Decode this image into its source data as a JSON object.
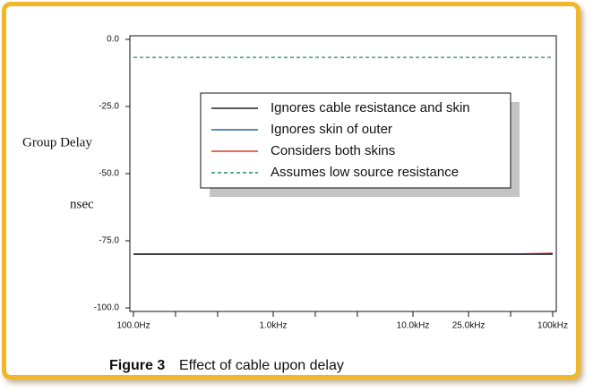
{
  "chart_data": {
    "type": "line",
    "y_label": "Group Delay",
    "y_unit": "nsec",
    "figure_label": "Figure 3",
    "caption": "Effect of cable upon delay",
    "x": [
      100,
      1000,
      10000,
      50000,
      100000
    ],
    "xlim": [
      100,
      100000
    ],
    "xscale": "log",
    "xticks": [
      {
        "value": 100,
        "label": "100.0Hz"
      },
      {
        "value": 1000,
        "label": "1.0kHz"
      },
      {
        "value": 10000,
        "label": "10.0kHz"
      },
      {
        "value": 25000,
        "label": "25.0kHz"
      },
      {
        "value": 100000,
        "label": "100kHz"
      }
    ],
    "xminorticks": [
      200,
      400,
      2000,
      4000,
      50000
    ],
    "ylim": [
      -100,
      0
    ],
    "yticks": [
      {
        "value": 0,
        "label": "0.0"
      },
      {
        "value": -25,
        "label": "-25.0"
      },
      {
        "value": -50,
        "label": "-50.0"
      },
      {
        "value": -75,
        "label": "-75.0"
      },
      {
        "value": -100,
        "label": "-100.0"
      }
    ],
    "series": [
      {
        "name": "Ignores cable resistance and skin",
        "color": "#222222",
        "linestyle": "solid",
        "values": [
          -80,
          -80,
          -80,
          -80,
          -80
        ]
      },
      {
        "name": "Ignores skin of outer",
        "color": "#2a64a8",
        "linestyle": "solid",
        "values": [
          -80,
          -80,
          -80,
          -80,
          -80
        ]
      },
      {
        "name": "Considers both skins",
        "color": "#d83a2a",
        "linestyle": "solid",
        "values": [
          -80,
          -80,
          -80,
          -80,
          -79.7
        ]
      },
      {
        "name": "Assumes low source resistance",
        "color": "#1e8a5a",
        "linestyle": "dashed",
        "values": [
          -6.7,
          -6.7,
          -6.7,
          -6.7,
          -6.7
        ]
      }
    ]
  }
}
